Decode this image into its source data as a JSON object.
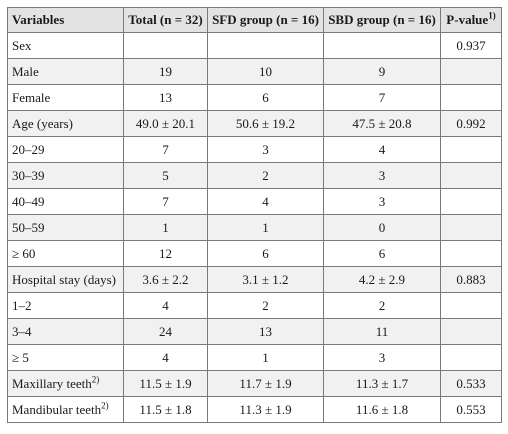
{
  "table": {
    "headers": [
      {
        "text": "Variables",
        "sup": ""
      },
      {
        "text": "Total (n = 32)",
        "sup": ""
      },
      {
        "text": "SFD group (n = 16)",
        "sup": ""
      },
      {
        "text": "SBD group (n = 16)",
        "sup": ""
      },
      {
        "text": "P-value",
        "sup": "1)"
      }
    ],
    "rows": [
      {
        "label": "Sex",
        "sup": "",
        "total": "",
        "sfd": "",
        "sbd": "",
        "p": "0.937"
      },
      {
        "label": "Male",
        "sup": "",
        "total": "19",
        "sfd": "10",
        "sbd": "9",
        "p": ""
      },
      {
        "label": "Female",
        "sup": "",
        "total": "13",
        "sfd": "6",
        "sbd": "7",
        "p": ""
      },
      {
        "label": "Age (years)",
        "sup": "",
        "total": "49.0 ± 20.1",
        "sfd": "50.6 ± 19.2",
        "sbd": "47.5 ± 20.8",
        "p": "0.992"
      },
      {
        "label": "20–29",
        "sup": "",
        "total": "7",
        "sfd": "3",
        "sbd": "4",
        "p": ""
      },
      {
        "label": "30–39",
        "sup": "",
        "total": "5",
        "sfd": "2",
        "sbd": "3",
        "p": ""
      },
      {
        "label": "40–49",
        "sup": "",
        "total": "7",
        "sfd": "4",
        "sbd": "3",
        "p": ""
      },
      {
        "label": "50–59",
        "sup": "",
        "total": "1",
        "sfd": "1",
        "sbd": "0",
        "p": ""
      },
      {
        "label": "≥  60",
        "sup": "",
        "total": "12",
        "sfd": "6",
        "sbd": "6",
        "p": ""
      },
      {
        "label": "Hospital stay (days)",
        "sup": "",
        "total": "3.6 ± 2.2",
        "sfd": "3.1 ± 1.2",
        "sbd": "4.2 ± 2.9",
        "p": "0.883"
      },
      {
        "label": "1–2",
        "sup": "",
        "total": "4",
        "sfd": "2",
        "sbd": "2",
        "p": ""
      },
      {
        "label": "3–4",
        "sup": "",
        "total": "24",
        "sfd": "13",
        "sbd": "11",
        "p": ""
      },
      {
        "label": "≥  5",
        "sup": "",
        "total": "4",
        "sfd": "1",
        "sbd": "3",
        "p": ""
      },
      {
        "label": "Maxillary teeth",
        "sup": "2)",
        "total": "11.5 ± 1.9",
        "sfd": "11.7 ± 1.9",
        "sbd": "11.3 ± 1.7",
        "p": "0.533"
      },
      {
        "label": "Mandibular teeth",
        "sup": "2)",
        "total": "11.5 ± 1.8",
        "sfd": "11.3 ± 1.9",
        "sbd": "11.6 ± 1.8",
        "p": "0.553"
      }
    ]
  }
}
